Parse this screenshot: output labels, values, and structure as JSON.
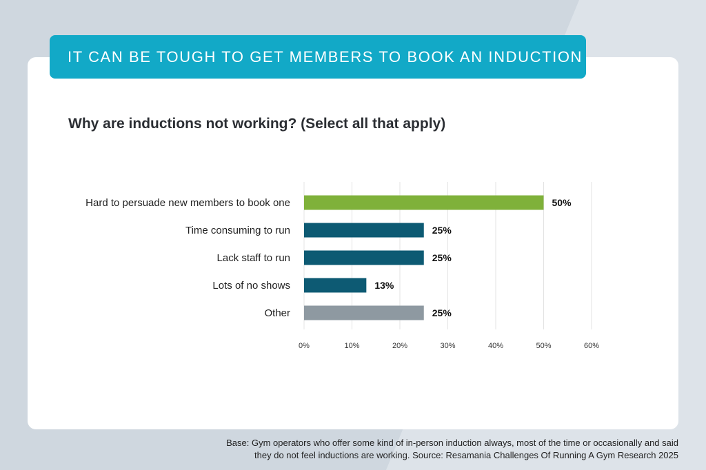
{
  "banner": {
    "title": "IT CAN BE TOUGH TO GET MEMBERS TO BOOK AN INDUCTION"
  },
  "colors": {
    "banner": "#12a9c7",
    "highlight_bar": "#7fb13a",
    "main_bar": "#0d5a73",
    "other_bar": "#8e99a1"
  },
  "footnote": {
    "line1": "Base: Gym operators who offer some kind of in-person induction always, most of the time or occasionally and said",
    "line2": "they do not feel inductions are working. Source: Resamania Challenges Of Running A Gym Research 2025"
  },
  "chart_data": {
    "type": "bar",
    "orientation": "horizontal",
    "title": "Why are inductions not working? (Select all that apply)",
    "categories": [
      "Hard to persuade new members to book one",
      "Time consuming to run",
      "Lack staff to run",
      "Lots of no shows",
      "Other"
    ],
    "values": [
      50,
      25,
      25,
      13,
      25
    ],
    "value_labels": [
      "50%",
      "25%",
      "25%",
      "13%",
      "25%"
    ],
    "bar_colors": [
      "#7fb13a",
      "#0d5a73",
      "#0d5a73",
      "#0d5a73",
      "#8e99a1"
    ],
    "x_ticks": [
      0,
      10,
      20,
      30,
      40,
      50,
      60
    ],
    "x_tick_labels": [
      "0%",
      "10%",
      "20%",
      "30%",
      "40%",
      "50%",
      "60%"
    ],
    "xlim": [
      0,
      60
    ],
    "grid": true,
    "legend": "none"
  }
}
